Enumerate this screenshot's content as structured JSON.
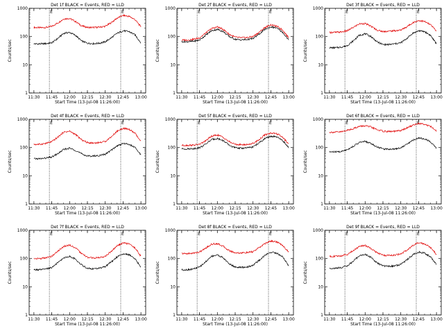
{
  "x_ticks": [
    "11:30",
    "11:45",
    "12:00",
    "12:15",
    "12:30",
    "12:45",
    "13:00"
  ],
  "y_ticks": [
    "1",
    "10",
    "100",
    "1000"
  ],
  "ylabel": "Counts/sec",
  "xlabel": "Start Time (13-Jul-08 11:26:00)",
  "marker_label": "E",
  "chart_data": [
    {
      "type": "line",
      "title": "Det 1f BLACK = Events, RED = LLD",
      "xlabel": "Start Time (13-Jul-08 11:26:00)",
      "ylabel": "Counts/sec",
      "yscale": "log",
      "ylim": [
        1,
        1000
      ],
      "xlim": [
        "11:26",
        "13:04"
      ],
      "markers_at": [
        "11:43",
        "12:43"
      ],
      "x": [
        "11:30",
        "11:35",
        "11:40",
        "11:45",
        "11:50",
        "11:55",
        "12:00",
        "12:05",
        "12:10",
        "12:15",
        "12:20",
        "12:25",
        "12:30",
        "12:35",
        "12:40",
        "12:45",
        "12:50",
        "12:55",
        "13:00"
      ],
      "series": [
        {
          "name": "LLD",
          "color": "#e00000",
          "values": [
            210,
            205,
            210,
            230,
            300,
            420,
            440,
            340,
            240,
            210,
            210,
            215,
            230,
            310,
            450,
            560,
            520,
            400,
            220
          ]
        },
        {
          "name": "Events",
          "color": "#000000",
          "values": [
            55,
            55,
            56,
            60,
            85,
            130,
            140,
            110,
            70,
            58,
            56,
            58,
            65,
            90,
            130,
            160,
            150,
            115,
            60
          ]
        }
      ]
    },
    {
      "type": "line",
      "title": "Det 2f BLACK = Events, RED = LLD",
      "xlabel": "Start Time (13-Jul-08 11:26:00)",
      "ylabel": "Counts/sec",
      "yscale": "log",
      "ylim": [
        1,
        1000
      ],
      "xlim": [
        "11:26",
        "13:04"
      ],
      "markers_at": [
        "11:43",
        "12:43"
      ],
      "x": [
        "11:30",
        "11:35",
        "11:40",
        "11:45",
        "11:50",
        "11:55",
        "12:00",
        "12:05",
        "12:10",
        "12:15",
        "12:20",
        "12:25",
        "12:30",
        "12:35",
        "12:40",
        "12:45",
        "12:50",
        "12:55",
        "13:00"
      ],
      "series": [
        {
          "name": "LLD",
          "color": "#e00000",
          "values": [
            75,
            75,
            80,
            90,
            130,
            190,
            220,
            180,
            120,
            95,
            90,
            92,
            100,
            140,
            210,
            260,
            230,
            170,
            90
          ]
        },
        {
          "name": "Events",
          "color": "#000000",
          "values": [
            65,
            66,
            68,
            75,
            110,
            160,
            180,
            150,
            100,
            80,
            76,
            78,
            85,
            120,
            180,
            220,
            200,
            140,
            75
          ]
        }
      ]
    },
    {
      "type": "line",
      "title": "Det 3f BLACK = Events, RED = LLD",
      "xlabel": "Start Time (13-Jul-08 11:26:00)",
      "ylabel": "Counts/sec",
      "yscale": "log",
      "ylim": [
        1,
        1000
      ],
      "xlim": [
        "11:26",
        "13:04"
      ],
      "markers_at": [
        "11:43",
        "12:43"
      ],
      "x": [
        "11:30",
        "11:35",
        "11:40",
        "11:45",
        "11:50",
        "11:55",
        "12:00",
        "12:05",
        "12:10",
        "12:15",
        "12:20",
        "12:25",
        "12:30",
        "12:35",
        "12:40",
        "12:45",
        "12:50",
        "12:55",
        "13:00"
      ],
      "series": [
        {
          "name": "LLD",
          "color": "#e00000",
          "values": [
            140,
            140,
            145,
            160,
            210,
            280,
            290,
            230,
            170,
            150,
            155,
            160,
            170,
            220,
            310,
            370,
            340,
            260,
            160
          ]
        },
        {
          "name": "Events",
          "color": "#000000",
          "values": [
            40,
            40,
            42,
            48,
            70,
            110,
            125,
            100,
            65,
            52,
            52,
            55,
            60,
            85,
            130,
            160,
            150,
            110,
            55
          ]
        }
      ]
    },
    {
      "type": "line",
      "title": "Det 4f BLACK = Events, RED = LLD",
      "xlabel": "Start Time (13-Jul-08 11:26:00)",
      "ylabel": "Counts/sec",
      "yscale": "log",
      "ylim": [
        1,
        1000
      ],
      "xlim": [
        "11:26",
        "13:04"
      ],
      "markers_at": [
        "11:43",
        "12:43"
      ],
      "x": [
        "11:30",
        "11:35",
        "11:40",
        "11:45",
        "11:50",
        "11:55",
        "12:00",
        "12:05",
        "12:10",
        "12:15",
        "12:20",
        "12:25",
        "12:30",
        "12:35",
        "12:40",
        "12:45",
        "12:50",
        "12:55",
        "13:00"
      ],
      "series": [
        {
          "name": "LLD",
          "color": "#e00000",
          "values": [
            130,
            130,
            140,
            160,
            230,
            350,
            380,
            290,
            190,
            150,
            145,
            150,
            165,
            240,
            380,
            480,
            440,
            320,
            160
          ]
        },
        {
          "name": "Events",
          "color": "#000000",
          "values": [
            40,
            40,
            42,
            46,
            60,
            85,
            95,
            80,
            60,
            50,
            50,
            52,
            58,
            80,
            115,
            140,
            130,
            100,
            55
          ]
        }
      ]
    },
    {
      "type": "line",
      "title": "Det 5f BLACK = Events, RED = LLD",
      "xlabel": "Start Time (13-Jul-08 11:26:00)",
      "ylabel": "Counts/sec",
      "yscale": "log",
      "ylim": [
        1,
        1000
      ],
      "xlim": [
        "11:26",
        "13:04"
      ],
      "markers_at": [
        "11:43",
        "12:43"
      ],
      "x": [
        "11:30",
        "11:35",
        "11:40",
        "11:45",
        "11:50",
        "11:55",
        "12:00",
        "12:05",
        "12:10",
        "12:15",
        "12:20",
        "12:25",
        "12:30",
        "12:35",
        "12:40",
        "12:45",
        "12:50",
        "12:55",
        "13:00"
      ],
      "series": [
        {
          "name": "LLD",
          "color": "#e00000",
          "values": [
            120,
            120,
            122,
            130,
            170,
            250,
            280,
            230,
            160,
            130,
            125,
            128,
            140,
            190,
            280,
            330,
            310,
            230,
            130
          ]
        },
        {
          "name": "Events",
          "color": "#000000",
          "values": [
            90,
            90,
            92,
            98,
            130,
            190,
            210,
            175,
            120,
            98,
            95,
            97,
            105,
            145,
            210,
            250,
            235,
            175,
            100
          ]
        }
      ]
    },
    {
      "type": "line",
      "title": "Det 6f BLACK = Events, RED = LLD",
      "xlabel": "Start Time (13-Jul-08 11:26:00)",
      "ylabel": "Counts/sec",
      "yscale": "log",
      "ylim": [
        1,
        1000
      ],
      "xlim": [
        "11:26",
        "13:04"
      ],
      "markers_at": [
        "11:43",
        "12:43"
      ],
      "x": [
        "11:30",
        "11:35",
        "11:40",
        "11:45",
        "11:50",
        "11:55",
        "12:00",
        "12:05",
        "12:10",
        "12:15",
        "12:20",
        "12:25",
        "12:30",
        "12:35",
        "12:40",
        "12:45",
        "12:50",
        "12:55",
        "13:00"
      ],
      "series": [
        {
          "name": "LLD",
          "color": "#e00000",
          "values": [
            350,
            350,
            360,
            410,
            470,
            560,
            590,
            530,
            430,
            380,
            370,
            375,
            400,
            490,
            620,
            720,
            680,
            560,
            380
          ]
        },
        {
          "name": "Events",
          "color": "#000000",
          "values": [
            70,
            70,
            72,
            85,
            110,
            150,
            165,
            140,
            105,
            90,
            88,
            90,
            98,
            130,
            180,
            220,
            205,
            160,
            95
          ]
        }
      ]
    },
    {
      "type": "line",
      "title": "Det 7f BLACK = Events, RED = LLD",
      "xlabel": "Start Time (13-Jul-08 11:26:00)",
      "ylabel": "Counts/sec",
      "yscale": "log",
      "ylim": [
        1,
        1000
      ],
      "xlim": [
        "11:26",
        "13:04"
      ],
      "markers_at": [
        "11:43",
        "12:43"
      ],
      "x": [
        "11:30",
        "11:35",
        "11:40",
        "11:45",
        "11:50",
        "11:55",
        "12:00",
        "12:05",
        "12:10",
        "12:15",
        "12:20",
        "12:25",
        "12:30",
        "12:35",
        "12:40",
        "12:45",
        "12:50",
        "12:55",
        "13:00"
      ],
      "series": [
        {
          "name": "LLD",
          "color": "#e00000",
          "values": [
            100,
            100,
            105,
            120,
            180,
            270,
            300,
            240,
            150,
            110,
            105,
            108,
            120,
            180,
            280,
            360,
            330,
            240,
            120
          ]
        },
        {
          "name": "Events",
          "color": "#000000",
          "values": [
            40,
            40,
            42,
            48,
            70,
            105,
            120,
            95,
            60,
            45,
            43,
            45,
            52,
            75,
            115,
            150,
            135,
            100,
            50
          ]
        }
      ]
    },
    {
      "type": "line",
      "title": "Det 8f BLACK = Events, RED = LLD",
      "xlabel": "Start Time (13-Jul-08 11:26:00)",
      "ylabel": "Counts/sec",
      "yscale": "log",
      "ylim": [
        1,
        1000
      ],
      "xlim": [
        "11:26",
        "13:04"
      ],
      "markers_at": [
        "11:43",
        "12:43"
      ],
      "x": [
        "11:30",
        "11:35",
        "11:40",
        "11:45",
        "11:50",
        "11:55",
        "12:00",
        "12:05",
        "12:10",
        "12:15",
        "12:20",
        "12:25",
        "12:30",
        "12:35",
        "12:40",
        "12:45",
        "12:50",
        "12:55",
        "13:00"
      ],
      "series": [
        {
          "name": "LLD",
          "color": "#e00000",
          "values": [
            150,
            150,
            155,
            170,
            230,
            320,
            340,
            270,
            190,
            160,
            158,
            162,
            175,
            240,
            340,
            420,
            390,
            290,
            170
          ]
        },
        {
          "name": "Events",
          "color": "#000000",
          "values": [
            40,
            40,
            43,
            50,
            75,
            120,
            135,
            105,
            65,
            50,
            48,
            50,
            58,
            85,
            130,
            170,
            155,
            115,
            55
          ]
        }
      ]
    },
    {
      "type": "line",
      "title": "Det 9f BLACK = Events, RED = LLD",
      "xlabel": "Start Time (13-Jul-08 11:26:00)",
      "ylabel": "Counts/sec",
      "yscale": "log",
      "ylim": [
        1,
        1000
      ],
      "xlim": [
        "11:26",
        "13:04"
      ],
      "markers_at": [
        "11:43",
        "12:43"
      ],
      "x": [
        "11:30",
        "11:35",
        "11:40",
        "11:45",
        "11:50",
        "11:55",
        "12:00",
        "12:05",
        "12:10",
        "12:15",
        "12:20",
        "12:25",
        "12:30",
        "12:35",
        "12:40",
        "12:45",
        "12:50",
        "12:55",
        "13:00"
      ],
      "series": [
        {
          "name": "LLD",
          "color": "#e00000",
          "values": [
            120,
            120,
            125,
            140,
            190,
            270,
            290,
            230,
            160,
            130,
            128,
            132,
            145,
            200,
            290,
            360,
            330,
            250,
            140
          ]
        },
        {
          "name": "Events",
          "color": "#000000",
          "values": [
            45,
            45,
            48,
            55,
            80,
            125,
            140,
            110,
            70,
            55,
            53,
            55,
            62,
            90,
            135,
            170,
            155,
            115,
            60
          ]
        }
      ]
    }
  ]
}
